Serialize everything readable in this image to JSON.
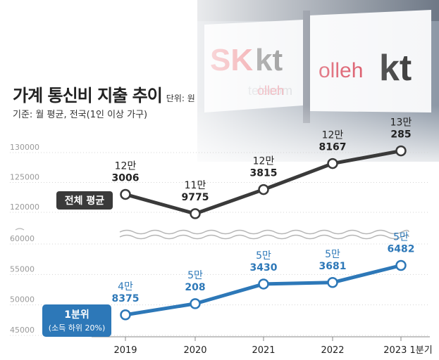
{
  "chart_data": {
    "type": "line",
    "title": "가계 통신비 지출 추이",
    "unit_note": "단위: 원",
    "subtitle": "기준: 월 평균, 전국(1인 이상 가구)",
    "categories": [
      "2019",
      "2020",
      "2021",
      "2022",
      "2023 1분기"
    ],
    "y_ticks_top": [
      "130000",
      "125000",
      "120000"
    ],
    "y_ticks_bottom": [
      "60000",
      "55000",
      "50000",
      "45000"
    ],
    "ylim_top": [
      115000,
      132000
    ],
    "ylim_bottom": [
      45000,
      62000
    ],
    "axis_break": true,
    "grid": true,
    "series": [
      {
        "name": "전체 평균",
        "values": [
          123006,
          119775,
          123815,
          128167,
          130285
        ],
        "labels": [
          [
            "12만",
            "3006"
          ],
          [
            "11만",
            "9775"
          ],
          [
            "12만",
            "3815"
          ],
          [
            "12만",
            "8167"
          ],
          [
            "13만",
            "285"
          ]
        ],
        "color": "#3a3a3a"
      },
      {
        "name": "1분위",
        "name_sub": "(소득 하위 20%)",
        "values": [
          48375,
          50208,
          53430,
          53681,
          56482
        ],
        "labels": [
          [
            "4만",
            "8375"
          ],
          [
            "5만",
            "208"
          ],
          [
            "5만",
            "3430"
          ],
          [
            "5만",
            "3681"
          ],
          [
            "5만",
            "6482"
          ]
        ],
        "color": "#2d78b8"
      }
    ]
  },
  "background": {
    "signs": [
      "SK",
      "kt",
      "telecom",
      "olleh",
      "olleh",
      "kt"
    ]
  }
}
